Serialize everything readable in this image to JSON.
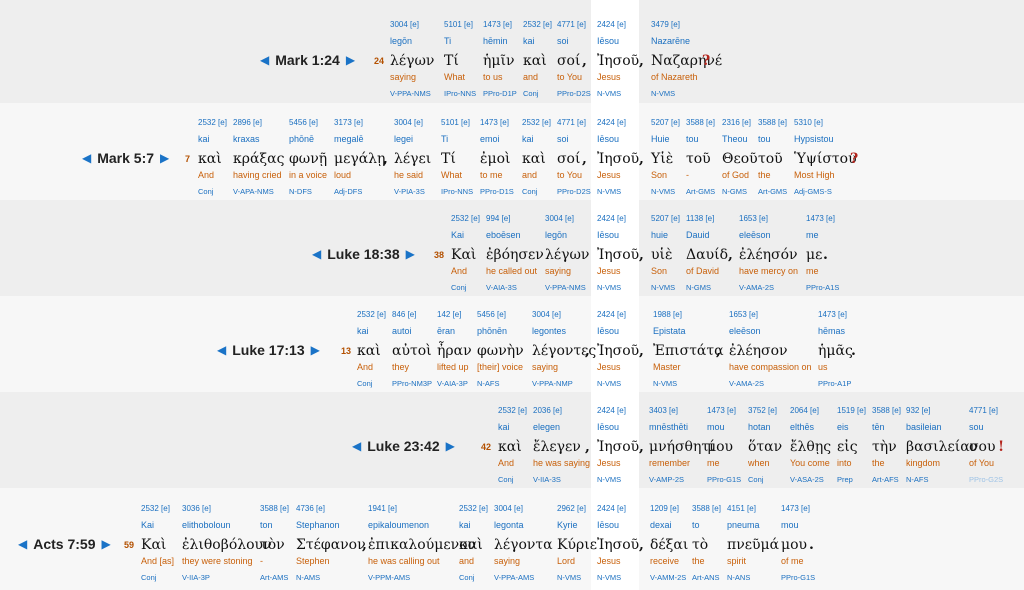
{
  "rows": [
    {
      "ref": "Mark 1:24",
      "verse_num": "24",
      "words": [
        {
          "sn": "3004 [e]",
          "tr": "legōn",
          "gk": "λέγων",
          "en": "saying",
          "pa": "V-PPA-NMS"
        },
        {
          "sn": "5101 [e]",
          "tr": "Ti",
          "gk": "Τί",
          "en": "What",
          "pa": "IPro-NNS"
        },
        {
          "sn": "1473 [e]",
          "tr": "hēmin",
          "gk": "ἡμῖν",
          "en": "to us",
          "pa": "PPro-D1P"
        },
        {
          "sn": "2532 [e]",
          "tr": "kai",
          "gk": "καὶ",
          "en": "and",
          "pa": "Conj"
        },
        {
          "sn": "4771 [e]",
          "tr": "soi",
          "gk": "σοί",
          "en": "to You",
          "pa": "PPro-D2S"
        },
        {
          "sn": "2424 [e]",
          "tr": "Iēsou",
          "gk": "Ἰησοῦ",
          "en": "Jesus",
          "pa": "N-VMS"
        },
        {
          "sn": "3479 [e]",
          "tr": "Nazarēne",
          "gk": "Ναζαρηνέ",
          "en": "of Nazareth",
          "pa": "N-VMS"
        }
      ],
      "puncs": [
        ",",
        ",",
        "?"
      ]
    },
    {
      "ref": "Mark 5:7",
      "verse_num": "7",
      "words": [
        {
          "sn": "2532 [e]",
          "tr": "kai",
          "gk": "καὶ",
          "en": "And",
          "pa": "Conj"
        },
        {
          "sn": "2896 [e]",
          "tr": "kraxas",
          "gk": "κράξας",
          "en": "having cried",
          "pa": "V-APA-NMS"
        },
        {
          "sn": "5456 [e]",
          "tr": "phōnē",
          "gk": "φωνῇ",
          "en": "in a voice",
          "pa": "N-DFS"
        },
        {
          "sn": "3173 [e]",
          "tr": "megalē",
          "gk": "μεγάλῃ",
          "en": "loud",
          "pa": "Adj-DFS"
        },
        {
          "sn": "3004 [e]",
          "tr": "legei",
          "gk": "λέγει",
          "en": "he said",
          "pa": "V-PIA-3S"
        },
        {
          "sn": "5101 [e]",
          "tr": "Ti",
          "gk": "Τί",
          "en": "What",
          "pa": "IPro-NNS"
        },
        {
          "sn": "1473 [e]",
          "tr": "emoi",
          "gk": "ἐμοὶ",
          "en": "to me",
          "pa": "PPro-D1S"
        },
        {
          "sn": "2532 [e]",
          "tr": "kai",
          "gk": "καὶ",
          "en": "and",
          "pa": "Conj"
        },
        {
          "sn": "4771 [e]",
          "tr": "soi",
          "gk": "σοί",
          "en": "to You",
          "pa": "PPro-D2S"
        },
        {
          "sn": "2424 [e]",
          "tr": "Iēsou",
          "gk": "Ἰησοῦ",
          "en": "Jesus",
          "pa": "N-VMS"
        },
        {
          "sn": "5207 [e]",
          "tr": "Huie",
          "gk": "Υἱὲ",
          "en": "Son",
          "pa": "N-VMS"
        },
        {
          "sn": "3588 [e]",
          "tr": "tou",
          "gk": "τοῦ",
          "en": "-",
          "pa": "Art-GMS"
        },
        {
          "sn": "2316 [e]",
          "tr": "Theou",
          "gk": "Θεοῦ",
          "en": "of God",
          "pa": "N-GMS"
        },
        {
          "sn": "3588 [e]",
          "tr": "tou",
          "gk": "τοῦ",
          "en": "the",
          "pa": "Art-GMS"
        },
        {
          "sn": "5310 [e]",
          "tr": "Hypsistou",
          "gk": "Ὑψίστου",
          "en": "Most High",
          "pa": "Adj-GMS-S"
        }
      ],
      "puncs": [
        ",",
        ",",
        ",",
        "?"
      ]
    },
    {
      "ref": "Luke 18:38",
      "verse_num": "38",
      "words": [
        {
          "sn": "2532 [e]",
          "tr": "Kai",
          "gk": "Καὶ",
          "en": "And",
          "pa": "Conj"
        },
        {
          "sn": "994 [e]",
          "tr": "eboēsen",
          "gk": "ἐβόησεν",
          "en": "he called out",
          "pa": "V-AIA-3S"
        },
        {
          "sn": "3004 [e]",
          "tr": "legōn",
          "gk": "λέγων",
          "en": "saying",
          "pa": "V-PPA-NMS"
        },
        {
          "sn": "2424 [e]",
          "tr": "Iēsou",
          "gk": "Ἰησοῦ",
          "en": "Jesus",
          "pa": "N-VMS"
        },
        {
          "sn": "5207 [e]",
          "tr": "huie",
          "gk": "υἱὲ",
          "en": "Son",
          "pa": "N-VMS"
        },
        {
          "sn": "1138 [e]",
          "tr": "Dauid",
          "gk": "Δαυίδ",
          "en": "of David",
          "pa": "N-GMS"
        },
        {
          "sn": "1653 [e]",
          "tr": "eleēson",
          "gk": "ἐλέησόν",
          "en": "have mercy on",
          "pa": "V-AMA-2S"
        },
        {
          "sn": "1473 [e]",
          "tr": "me",
          "gk": "με",
          "en": "me",
          "pa": "PPro-A1S"
        }
      ],
      "puncs": [
        ",",
        ",",
        "."
      ]
    },
    {
      "ref": "Luke 17:13",
      "verse_num": "13",
      "words": [
        {
          "sn": "2532 [e]",
          "tr": "kai",
          "gk": "καὶ",
          "en": "And",
          "pa": "Conj"
        },
        {
          "sn": "846 [e]",
          "tr": "autoi",
          "gk": "αὐτοὶ",
          "en": "they",
          "pa": "PPro-NM3P"
        },
        {
          "sn": "142 [e]",
          "tr": "ēran",
          "gk": "ἦραν",
          "en": "lifted up",
          "pa": "V-AIA-3P"
        },
        {
          "sn": "5456 [e]",
          "tr": "phōnēn",
          "gk": "φωνὴν",
          "en": "[their] voice",
          "pa": "N-AFS"
        },
        {
          "sn": "3004 [e]",
          "tr": "legontes",
          "gk": "λέγοντες",
          "en": "saying",
          "pa": "V-PPA-NMP"
        },
        {
          "sn": "2424 [e]",
          "tr": "Iēsou",
          "gk": "Ἰησοῦ",
          "en": "Jesus",
          "pa": "N-VMS"
        },
        {
          "sn": "1988 [e]",
          "tr": "Epistata",
          "gk": "Ἐπιστάτα",
          "en": "Master",
          "pa": "N-VMS"
        },
        {
          "sn": "1653 [e]",
          "tr": "eleēson",
          "gk": "ἐλέησον",
          "en": "have compassion on",
          "pa": "V-AMA-2S"
        },
        {
          "sn": "1473 [e]",
          "tr": "hēmas",
          "gk": "ἡμᾶς",
          "en": "us",
          "pa": "PPro-A1P"
        }
      ],
      "puncs": [
        ",",
        ",",
        ",",
        "."
      ]
    },
    {
      "ref": "Luke 23:42",
      "verse_num": "42",
      "words": [
        {
          "sn": "2532 [e]",
          "tr": "kai",
          "gk": "καὶ",
          "en": "And",
          "pa": "Conj"
        },
        {
          "sn": "2036 [e]",
          "tr": "elegen",
          "gk": "ἔλεγεν",
          "en": "he was saying",
          "pa": "V-IIA-3S"
        },
        {
          "sn": "2424 [e]",
          "tr": "Iēsou",
          "gk": "Ἰησοῦ",
          "en": "Jesus",
          "pa": "N-VMS"
        },
        {
          "sn": "3403 [e]",
          "tr": "mnēsthēti",
          "gk": "μνήσθητί",
          "en": "remember",
          "pa": "V-AMP-2S"
        },
        {
          "sn": "1473 [e]",
          "tr": "mou",
          "gk": "μου",
          "en": "me",
          "pa": "PPro-G1S"
        },
        {
          "sn": "3752 [e]",
          "tr": "hotan",
          "gk": "ὅταν",
          "en": "when",
          "pa": "Conj"
        },
        {
          "sn": "2064 [e]",
          "tr": "elthēs",
          "gk": "ἔλθῃς",
          "en": "You come",
          "pa": "V-ASA-2S"
        },
        {
          "sn": "1519 [e]",
          "tr": "eis",
          "gk": "εἰς",
          "en": "into",
          "pa": "Prep"
        },
        {
          "sn": "3588 [e]",
          "tr": "tēn",
          "gk": "τὴν",
          "en": "the",
          "pa": "Art-AFS"
        },
        {
          "sn": "932 [e]",
          "tr": "basileian",
          "gk": "βασιλείαν",
          "en": "kingdom",
          "pa": "N-AFS"
        },
        {
          "sn": "4771 [e]",
          "tr": "sou",
          "gk": "σου",
          "en": "of You",
          "pa": "PPro-G2S",
          "faint": true
        }
      ],
      "puncs": [
        ",",
        ",",
        "!"
      ]
    },
    {
      "ref": "Acts 7:59",
      "verse_num": "59",
      "words": [
        {
          "sn": "2532 [e]",
          "tr": "Kai",
          "gk": "Καὶ",
          "en": "And [as]",
          "pa": "Conj"
        },
        {
          "sn": "3036 [e]",
          "tr": "elithoboloun",
          "gk": "ἐλιθοβόλουν",
          "en": "they were stoning",
          "pa": "V-IIA-3P"
        },
        {
          "sn": "3588 [e]",
          "tr": "ton",
          "gk": "τὸν",
          "en": "-",
          "pa": "Art-AMS"
        },
        {
          "sn": "4736 [e]",
          "tr": "Stephanon",
          "gk": "Στέφανον",
          "en": "Stephen",
          "pa": "N-AMS"
        },
        {
          "sn": "1941 [e]",
          "tr": "epikaloumenon",
          "gk": "ἐπικαλούμενον",
          "en": "he was calling out",
          "pa": "V-PPM-AMS"
        },
        {
          "sn": "2532 [e]",
          "tr": "kai",
          "gk": "καὶ",
          "en": "and",
          "pa": "Conj"
        },
        {
          "sn": "3004 [e]",
          "tr": "legonta",
          "gk": "λέγοντα",
          "en": "saying",
          "pa": "V-PPA-AMS"
        },
        {
          "sn": "2962 [e]",
          "tr": "Kyrie",
          "gk": "Κύριε",
          "en": "Lord",
          "pa": "N-VMS"
        },
        {
          "sn": "2424 [e]",
          "tr": "Iēsou",
          "gk": "Ἰησοῦ",
          "en": "Jesus",
          "pa": "N-VMS"
        },
        {
          "sn": "1209 [e]",
          "tr": "dexai",
          "gk": "δέξαι",
          "en": "receive",
          "pa": "V-AMM-2S"
        },
        {
          "sn": "3588 [e]",
          "tr": "to",
          "gk": "τὸ",
          "en": "the",
          "pa": "Art-ANS"
        },
        {
          "sn": "4151 [e]",
          "tr": "pneuma",
          "gk": "πνεῦμά",
          "en": "spirit",
          "pa": "N-ANS"
        },
        {
          "sn": "1473 [e]",
          "tr": "mou",
          "gk": "μου",
          "en": "of me",
          "pa": "PPro-G1S"
        }
      ],
      "puncs": [
        ",",
        ",",
        "."
      ]
    }
  ]
}
